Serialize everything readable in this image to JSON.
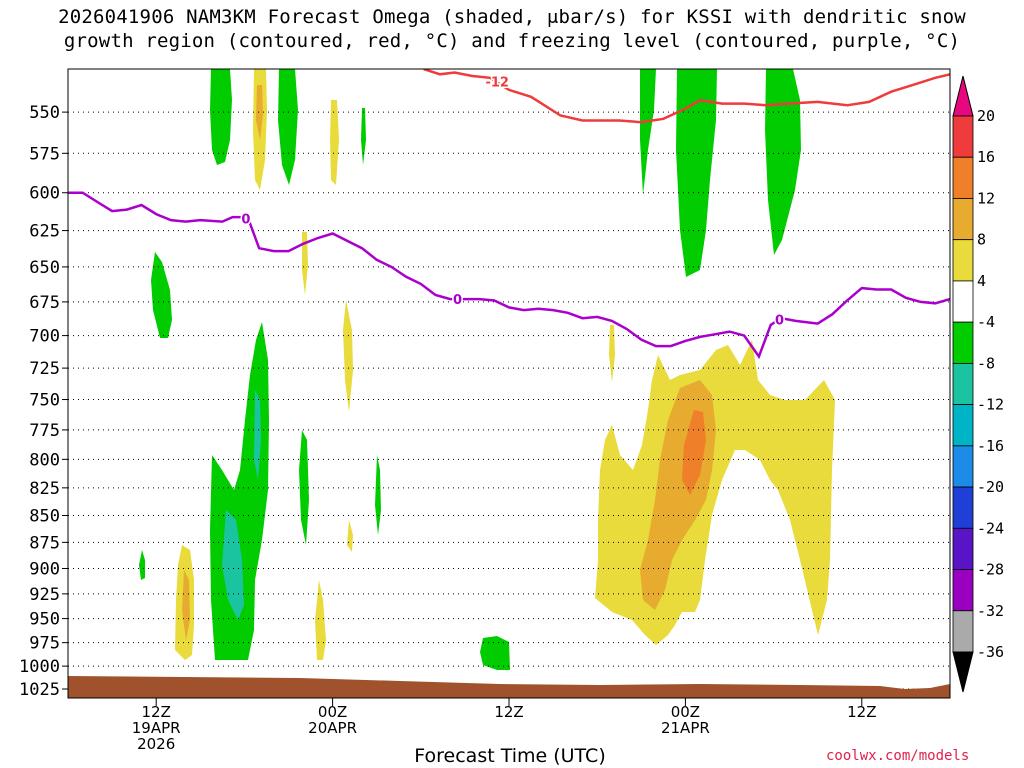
{
  "title_line1": "2026041906 NAM3KM Forecast Omega (shaded, μbar/s) for KSSI with dendritic snow",
  "title_line2": "growth region (contoured, red, °C) and freezing level (contoured, purple, °C)",
  "credit": "coolwx.com/models",
  "chart_data": {
    "type": "contour",
    "title": "2026041906 NAM3KM Forecast Omega (shaded, μbar/s) for KSSI with dendritic snow growth region (contoured, red, °C) and freezing level (contoured, purple, °C)",
    "xlabel": "Forecast Time (UTC)",
    "ylabel": "",
    "xlim_hours": [
      0,
      60
    ],
    "ylim_hpa": [
      1035,
      525
    ],
    "y_scale": "log-pressure",
    "y_ticks": [
      "550",
      "575",
      "600",
      "625",
      "650",
      "675",
      "700",
      "725",
      "750",
      "775",
      "800",
      "825",
      "850",
      "875",
      "900",
      "925",
      "950",
      "975",
      "1000",
      "1025"
    ],
    "x_ticks": [
      {
        "hour": 6,
        "label": "12Z",
        "sub": "19APR",
        "sub2": "2026"
      },
      {
        "hour": 18,
        "label": "00Z",
        "sub": "20APR",
        "sub2": ""
      },
      {
        "hour": 30,
        "label": "12Z",
        "sub": "",
        "sub2": ""
      },
      {
        "hour": 42,
        "label": "00Z",
        "sub": "21APR",
        "sub2": ""
      },
      {
        "hour": 54,
        "label": "12Z",
        "sub": "",
        "sub2": ""
      }
    ],
    "grid": "dotted horizontal at each pressure level",
    "colorbar": {
      "labels": [
        "20",
        "16",
        "12",
        "8",
        "4",
        "-4",
        "-8",
        "-12",
        "-16",
        "-20",
        "-24",
        "-28",
        "-32",
        "-36"
      ],
      "colors": [
        "#e7087f",
        "#ef3b3b",
        "#f07f2a",
        "#e6ab2f",
        "#e8db3b",
        "#ffffff",
        "#00cc00",
        "#1bc4a0",
        "#00b4c8",
        "#1c8ce8",
        "#1f3fd6",
        "#5a14c8",
        "#9a00c0",
        "#aaaaaa",
        "#000000"
      ]
    },
    "series": [
      {
        "name": "-12",
        "color": "#ef3b3b",
        "points": [
          [
            24.2,
            525
          ],
          [
            25.3,
            528
          ],
          [
            26.3,
            527
          ],
          [
            27.5,
            529
          ],
          [
            28.7,
            530
          ],
          [
            30,
            537
          ],
          [
            31.5,
            541
          ],
          [
            33.5,
            552
          ],
          [
            35,
            555
          ],
          [
            37.5,
            555
          ],
          [
            39,
            556
          ],
          [
            40.5,
            554
          ],
          [
            42,
            548
          ],
          [
            43,
            543
          ],
          [
            44.5,
            545
          ],
          [
            46,
            545
          ],
          [
            47.5,
            546
          ],
          [
            49,
            545
          ],
          [
            51,
            544
          ],
          [
            53,
            546
          ],
          [
            54.5,
            544
          ],
          [
            56,
            538
          ],
          [
            57.5,
            534
          ],
          [
            59,
            530
          ],
          [
            60,
            528
          ]
        ]
      },
      {
        "name": "0",
        "color": "#aa00cc",
        "points": [
          [
            0,
            600
          ],
          [
            1,
            600
          ],
          [
            2,
            606
          ],
          [
            3,
            612
          ],
          [
            4,
            611
          ],
          [
            5,
            608
          ],
          [
            6,
            614
          ],
          [
            7,
            618
          ],
          [
            8,
            619
          ],
          [
            9,
            618
          ],
          [
            10.5,
            619
          ],
          [
            11.2,
            616
          ],
          [
            11.7,
            616
          ],
          [
            12.3,
            618
          ],
          [
            13,
            637
          ],
          [
            14,
            639
          ],
          [
            15,
            639
          ],
          [
            16,
            634
          ],
          [
            17,
            630
          ],
          [
            18,
            627
          ],
          [
            19,
            632
          ],
          [
            20,
            637
          ],
          [
            21,
            645
          ],
          [
            22,
            650
          ],
          [
            23,
            657
          ],
          [
            24,
            662
          ],
          [
            25,
            670
          ],
          [
            26,
            673
          ],
          [
            27,
            673
          ],
          [
            28,
            673
          ],
          [
            29,
            674
          ],
          [
            30,
            679
          ],
          [
            31,
            681
          ],
          [
            32,
            680
          ],
          [
            33,
            681
          ],
          [
            34,
            683
          ],
          [
            35,
            687
          ],
          [
            36,
            686
          ],
          [
            37,
            689
          ],
          [
            38,
            695
          ],
          [
            39,
            703
          ],
          [
            40,
            708
          ],
          [
            41,
            708
          ],
          [
            42,
            704
          ],
          [
            43,
            701
          ],
          [
            44,
            699
          ],
          [
            45,
            697
          ],
          [
            46,
            700
          ],
          [
            47,
            716
          ],
          [
            47.8,
            692
          ],
          [
            48.5,
            687
          ],
          [
            49.5,
            689
          ],
          [
            51,
            691
          ],
          [
            52,
            684
          ],
          [
            53,
            674
          ],
          [
            54,
            665
          ],
          [
            55,
            666
          ],
          [
            56,
            666
          ],
          [
            57,
            672
          ],
          [
            58,
            675
          ],
          [
            59,
            676
          ],
          [
            60,
            673
          ]
        ]
      }
    ],
    "shaded_regions": [
      {
        "value": "-8 to -4",
        "color": "#00cc00",
        "approx_hours": [
          9.5,
          11.0
        ],
        "approx_hpa": [
          525,
          580
        ]
      },
      {
        "value": "-8 to -4",
        "color": "#00cc00",
        "approx_hours": [
          14.0,
          15.5
        ],
        "approx_hpa": [
          525,
          592
        ]
      },
      {
        "value": "-8 to -4",
        "color": "#00cc00",
        "approx_hours": [
          5.5,
          7.0
        ],
        "approx_hpa": [
          650,
          695
        ]
      },
      {
        "value": "-8 to -4",
        "color": "#00cc00",
        "approx_hours": [
          9.3,
          13.5
        ],
        "approx_hpa": [
          695,
          995
        ]
      },
      {
        "value": "-12 to -8",
        "color": "#1bc4a0",
        "approx_hours": [
          10.5,
          12.5
        ],
        "approx_hpa": [
          870,
          945
        ]
      },
      {
        "value": "-8 to -4",
        "color": "#00cc00",
        "approx_hours": [
          28.5,
          30.0
        ],
        "approx_hpa": [
          980,
          1000
        ]
      },
      {
        "value": "-8 to -4",
        "color": "#00cc00",
        "approx_hours": [
          38.5,
          39.5
        ],
        "approx_hpa": [
          525,
          590
        ]
      },
      {
        "value": "-8 to -4",
        "color": "#00cc00",
        "approx_hours": [
          41.5,
          44.5
        ],
        "approx_hpa": [
          525,
          660
        ]
      },
      {
        "value": "-8 to -4",
        "color": "#00cc00",
        "approx_hours": [
          47.5,
          50.5
        ],
        "approx_hpa": [
          525,
          650
        ]
      },
      {
        "value": "4 to 8",
        "color": "#e8db3b",
        "approx_hours": [
          36.5,
          52.0
        ],
        "approx_hpa": [
          710,
          985
        ]
      },
      {
        "value": "8 to 12",
        "color": "#e6ab2f",
        "approx_hours": [
          39.5,
          44.0
        ],
        "approx_hpa": [
          760,
          940
        ]
      },
      {
        "value": "12 to 16",
        "color": "#f07f2a",
        "approx_hours": [
          41.8,
          43.2
        ],
        "approx_hpa": [
          770,
          830
        ]
      },
      {
        "value": "4 to 8",
        "color": "#e8db3b",
        "approx_hours": [
          7.5,
          9.0
        ],
        "approx_hpa": [
          880,
          985
        ]
      },
      {
        "value": "4 to 8",
        "color": "#e8db3b",
        "approx_hours": [
          12.0,
          13.0
        ],
        "approx_hpa": [
          525,
          600
        ]
      }
    ]
  }
}
